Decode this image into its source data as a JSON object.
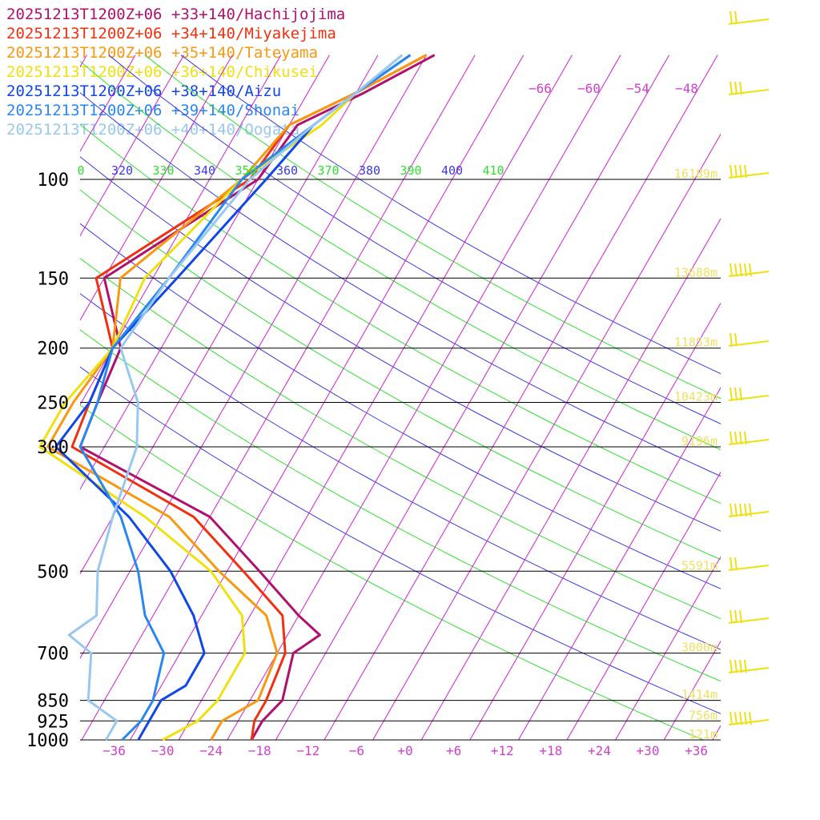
{
  "chart_data": {
    "type": "line",
    "subtype": "skew-t log-p sounding",
    "pressure_levels": [
      100,
      150,
      200,
      250,
      300,
      500,
      700,
      850,
      925,
      1000
    ],
    "temp_ticks": [
      -36,
      -30,
      -24,
      -18,
      -12,
      -6,
      0,
      6,
      12,
      18,
      24,
      30,
      36
    ],
    "temp_tick_labels": [
      "−36",
      "−30",
      "−24",
      "−18",
      "−12",
      "−6",
      "+0",
      "+6",
      "+12",
      "+18",
      "+24",
      "+30",
      "+36"
    ],
    "upper_temp_labels": [
      "−66",
      "−60",
      "−54",
      "−48"
    ],
    "theta_labels": [
      "0",
      "320",
      "330",
      "340",
      "350",
      "360",
      "370",
      "380",
      "390",
      "400",
      "410"
    ],
    "height_labels": [
      {
        "p": 100,
        "text": "16189m"
      },
      {
        "p": 150,
        "text": "13688m"
      },
      {
        "p": 200,
        "text": "11853m"
      },
      {
        "p": 250,
        "text": "10423m"
      },
      {
        "p": 300,
        "text": "9196m"
      },
      {
        "p": 500,
        "text": "5591m"
      },
      {
        "p": 700,
        "text": "3000m"
      },
      {
        "p": 850,
        "text": "1414m"
      },
      {
        "p": 925,
        "text": "756m"
      },
      {
        "p": 1000,
        "text": "121m"
      }
    ],
    "series": [
      {
        "name": "20251213T1200Z+06 +33+140/Hachijojima",
        "color": "#b0106e",
        "points": [
          [
            60,
            -45
          ],
          [
            70,
            -51
          ],
          [
            80,
            -57
          ],
          [
            100,
            -58
          ],
          [
            150,
            -70
          ],
          [
            200,
            -63
          ],
          [
            250,
            -62
          ],
          [
            300,
            -61
          ],
          [
            400,
            -40
          ],
          [
            500,
            -30
          ],
          [
            600,
            -22
          ],
          [
            650,
            -18
          ],
          [
            700,
            -20
          ],
          [
            850,
            -18
          ],
          [
            925,
            -19
          ],
          [
            1000,
            -19
          ]
        ]
      },
      {
        "name": "20251213T1200Z+06 +34+140/Miyakejima",
        "color": "#f03010",
        "points": [
          [
            60,
            -46
          ],
          [
            70,
            -52
          ],
          [
            80,
            -58
          ],
          [
            100,
            -59
          ],
          [
            150,
            -71
          ],
          [
            200,
            -64
          ],
          [
            250,
            -63
          ],
          [
            300,
            -62
          ],
          [
            400,
            -42
          ],
          [
            500,
            -32
          ],
          [
            600,
            -24
          ],
          [
            700,
            -21
          ],
          [
            850,
            -20
          ],
          [
            925,
            -20
          ],
          [
            1000,
            -19
          ]
        ]
      },
      {
        "name": "20251213T1200Z+06 +35+140/Tateyama",
        "color": "#f89810",
        "points": [
          [
            60,
            -46
          ],
          [
            70,
            -52
          ],
          [
            80,
            -58
          ],
          [
            100,
            -60
          ],
          [
            150,
            -68
          ],
          [
            200,
            -64
          ],
          [
            250,
            -65
          ],
          [
            300,
            -65
          ],
          [
            400,
            -45
          ],
          [
            500,
            -35
          ],
          [
            600,
            -26
          ],
          [
            700,
            -22
          ],
          [
            850,
            -21
          ],
          [
            925,
            -24
          ],
          [
            1000,
            -24
          ]
        ]
      },
      {
        "name": "20251213T1200Z+06 +36+140/Chikusei",
        "color": "#f0e010",
        "points": [
          [
            60,
            -48
          ],
          [
            70,
            -52
          ],
          [
            80,
            -54
          ],
          [
            100,
            -60
          ],
          [
            150,
            -65
          ],
          [
            200,
            -64
          ],
          [
            250,
            -66
          ],
          [
            300,
            -66
          ],
          [
            400,
            -48
          ],
          [
            500,
            -36
          ],
          [
            600,
            -29
          ],
          [
            700,
            -26
          ],
          [
            850,
            -26
          ],
          [
            925,
            -27
          ],
          [
            1000,
            -30
          ]
        ]
      },
      {
        "name": "20251213T1200Z+06 +38+140/Aizu",
        "color": "#1048e8",
        "points": [
          [
            60,
            -48
          ],
          [
            70,
            -52
          ],
          [
            80,
            -55
          ],
          [
            100,
            -57
          ],
          [
            150,
            -61
          ],
          [
            200,
            -64
          ],
          [
            250,
            -63
          ],
          [
            300,
            -64
          ],
          [
            400,
            -50
          ],
          [
            500,
            -41
          ],
          [
            600,
            -35
          ],
          [
            700,
            -31
          ],
          [
            800,
            -31
          ],
          [
            850,
            -33
          ],
          [
            925,
            -33
          ],
          [
            1000,
            -33
          ]
        ]
      },
      {
        "name": "20251213T1200Z+06 +39+140/Shonai",
        "color": "#2888f0",
        "points": [
          [
            60,
            -48
          ],
          [
            70,
            -52
          ],
          [
            80,
            -55
          ],
          [
            100,
            -60
          ],
          [
            150,
            -62
          ],
          [
            200,
            -64
          ],
          [
            250,
            -62
          ],
          [
            300,
            -61
          ],
          [
            400,
            -51
          ],
          [
            500,
            -45
          ],
          [
            600,
            -41
          ],
          [
            700,
            -36
          ],
          [
            850,
            -34
          ],
          [
            925,
            -34
          ],
          [
            1000,
            -35
          ]
        ]
      },
      {
        "name": "20251213T1200Z+06 +40+140/Oogata",
        "color": "#98c8f0",
        "points": [
          [
            60,
            -49
          ],
          [
            70,
            -52
          ],
          [
            80,
            -55
          ],
          [
            100,
            -59
          ],
          [
            150,
            -62
          ],
          [
            200,
            -63
          ],
          [
            250,
            -57
          ],
          [
            300,
            -54
          ],
          [
            400,
            -52
          ],
          [
            500,
            -50
          ],
          [
            600,
            -47
          ],
          [
            650,
            -49
          ],
          [
            700,
            -45
          ],
          [
            850,
            -42
          ],
          [
            925,
            -37
          ],
          [
            1000,
            -37
          ]
        ]
      }
    ]
  }
}
